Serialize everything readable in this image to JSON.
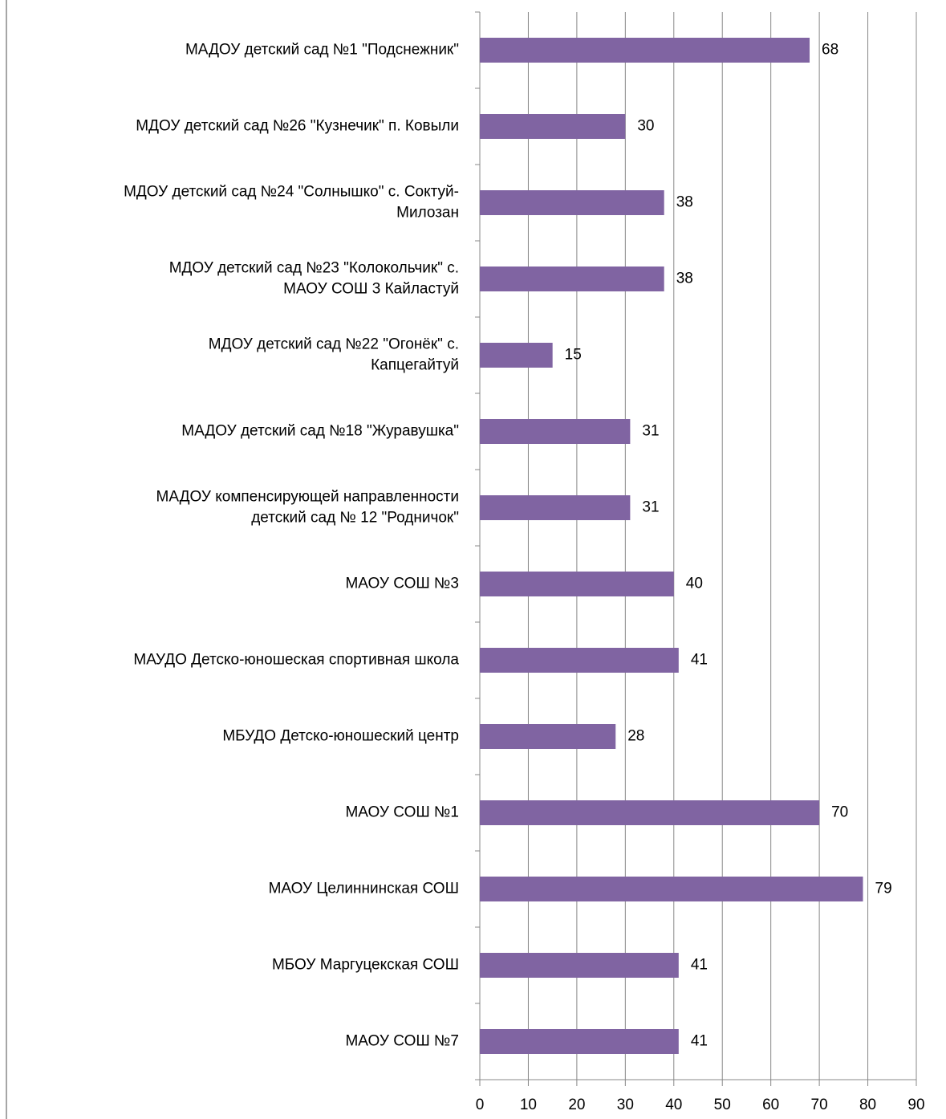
{
  "chart_data": {
    "type": "bar",
    "orientation": "horizontal",
    "categories": [
      [
        "МАДОУ детский сад №1  \"Подснежник\""
      ],
      [
        "МДОУ детский сад №26  \"Кузнечик\"  п. Ковыли"
      ],
      [
        "МДОУ детский сад №24  \"Солнышко\"  с. Соктуй-",
        "Милозан"
      ],
      [
        "МДОУ детский сад №23  \"Колокольчик\"  с.",
        "МАОУ  СОШ   3 Кайластуй"
      ],
      [
        "МДОУ детский сад №22  \"Огонёк\"  с.",
        "Капцегайтуй"
      ],
      [
        "МАДОУ детский сад №18  \"Журавушка\""
      ],
      [
        "МАДОУ компенсирующей направленности",
        "детский сад № 12  \"Родничок\""
      ],
      [
        "МАОУ  СОШ №3"
      ],
      [
        "МАУДО  Детско-юношеская спортивная школа"
      ],
      [
        "МБУДО  Детско-юношеский центр"
      ],
      [
        "МАОУ  СОШ №1"
      ],
      [
        "МАОУ  Целиннинская СОШ"
      ],
      [
        "МБОУ  Маргуцекская СОШ"
      ],
      [
        "МАОУ  СОШ №7"
      ]
    ],
    "values": [
      68,
      30,
      38,
      38,
      15,
      31,
      31,
      40,
      41,
      28,
      70,
      79,
      41,
      41
    ],
    "color": "#8064a2",
    "xlim": [
      0,
      90
    ],
    "xticks": [
      0,
      10,
      20,
      30,
      40,
      50,
      60,
      70,
      80,
      90
    ],
    "grid": true
  }
}
